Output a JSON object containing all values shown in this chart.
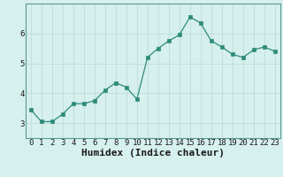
{
  "x": [
    0,
    1,
    2,
    3,
    4,
    5,
    6,
    7,
    8,
    9,
    10,
    11,
    12,
    13,
    14,
    15,
    16,
    17,
    18,
    19,
    20,
    21,
    22,
    23
  ],
  "y": [
    3.45,
    3.05,
    3.05,
    3.3,
    3.65,
    3.65,
    3.75,
    4.1,
    4.35,
    4.2,
    3.8,
    5.2,
    5.5,
    5.75,
    5.95,
    6.55,
    6.35,
    5.75,
    5.55,
    5.3,
    5.2,
    5.45,
    5.55,
    5.4
  ],
  "xlabel": "Humidex (Indice chaleur)",
  "ylim": [
    2.5,
    7.0
  ],
  "xlim": [
    -0.5,
    23.5
  ],
  "yticks": [
    3,
    4,
    5,
    6
  ],
  "xticks": [
    0,
    1,
    2,
    3,
    4,
    5,
    6,
    7,
    8,
    9,
    10,
    11,
    12,
    13,
    14,
    15,
    16,
    17,
    18,
    19,
    20,
    21,
    22,
    23
  ],
  "line_color": "#2e8b7a",
  "marker_color": "#2e8b7a",
  "bg_color": "#d6f0ee",
  "grid_color": "#b8d8d4",
  "xlabel_fontsize": 8,
  "tick_fontsize": 6.5
}
